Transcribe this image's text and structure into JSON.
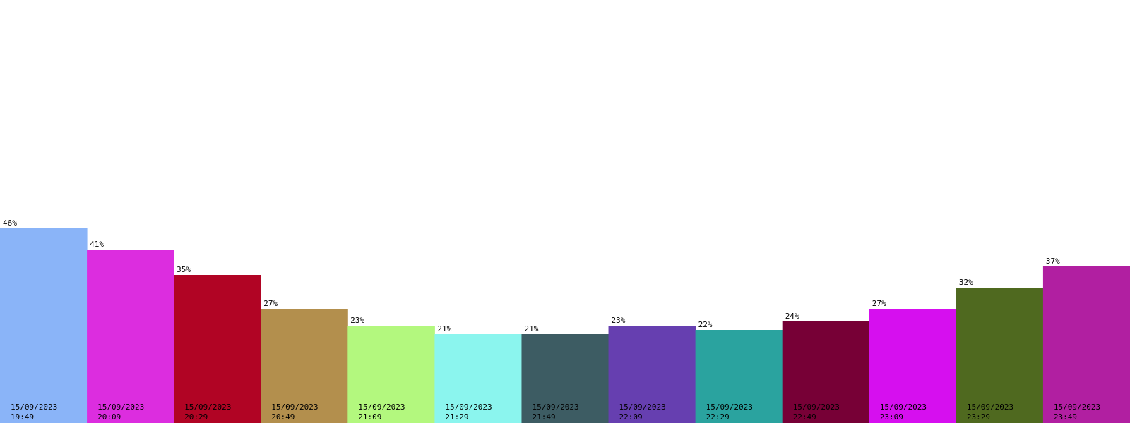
{
  "chart_data": {
    "type": "bar",
    "categories": [
      [
        "15/09/2023",
        "19:49"
      ],
      [
        "15/09/2023",
        "20:09"
      ],
      [
        "15/09/2023",
        "20:29"
      ],
      [
        "15/09/2023",
        "20:49"
      ],
      [
        "15/09/2023",
        "21:09"
      ],
      [
        "15/09/2023",
        "21:29"
      ],
      [
        "15/09/2023",
        "21:49"
      ],
      [
        "15/09/2023",
        "22:09"
      ],
      [
        "15/09/2023",
        "22:29"
      ],
      [
        "15/09/2023",
        "22:49"
      ],
      [
        "15/09/2023",
        "23:09"
      ],
      [
        "15/09/2023",
        "23:29"
      ],
      [
        "15/09/2023",
        "23:49"
      ]
    ],
    "values": [
      46,
      41,
      35,
      27,
      23,
      21,
      21,
      23,
      22,
      24,
      27,
      32,
      37
    ],
    "value_labels": [
      "46%",
      "41%",
      "35%",
      "27%",
      "23%",
      "21%",
      "21%",
      "23%",
      "22%",
      "24%",
      "27%",
      "32%",
      "37%"
    ],
    "unit": "%",
    "colors": [
      "#8ab4f8",
      "#dc2ddf",
      "#b10424",
      "#b38f4d",
      "#b3f87e",
      "#8bf5ee",
      "#3d5c63",
      "#663fb0",
      "#2aa39f",
      "#770036",
      "#d60fef",
      "#4f691f",
      "#b11fa1"
    ],
    "ylim": [
      0,
      100
    ],
    "grid": false,
    "legend": "none"
  }
}
